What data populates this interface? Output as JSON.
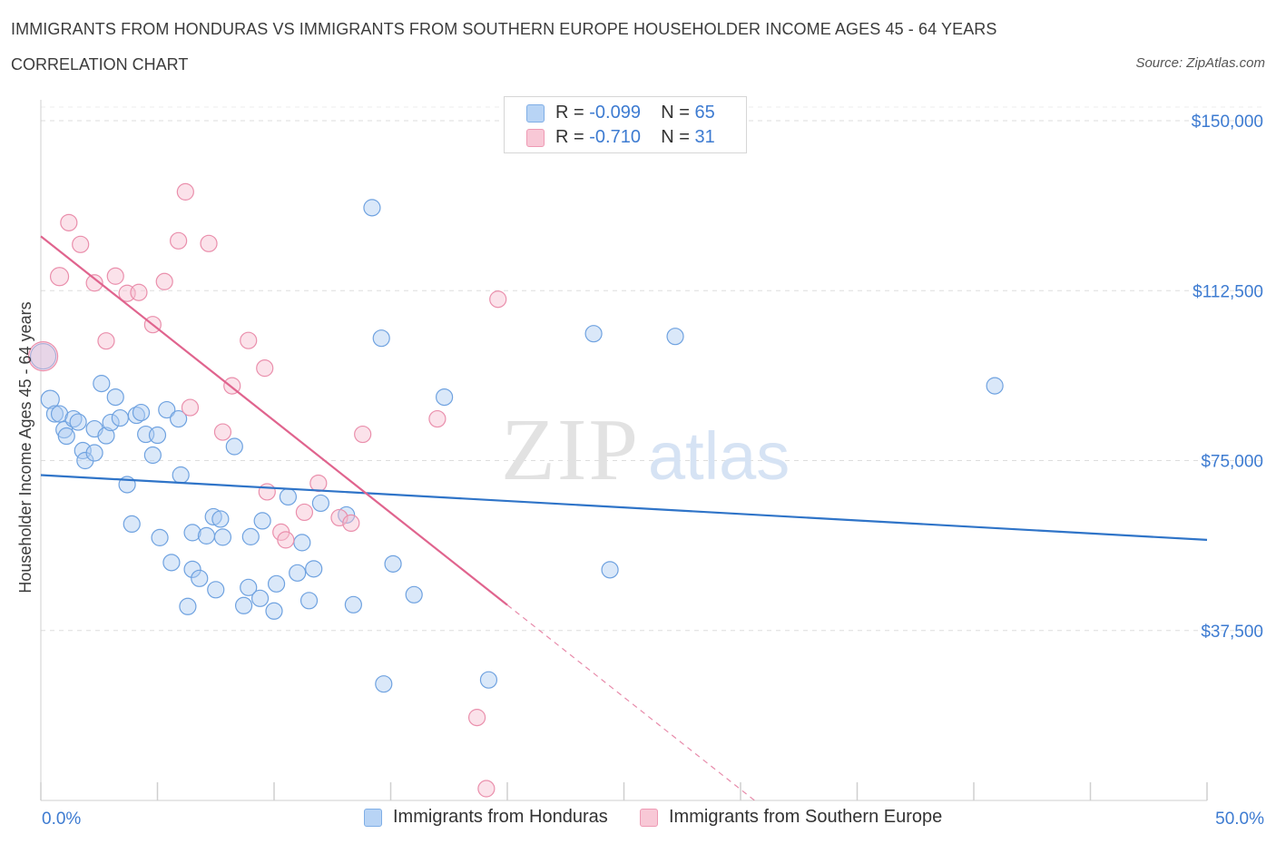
{
  "title": "IMMIGRANTS FROM HONDURAS VS IMMIGRANTS FROM SOUTHERN EUROPE HOUSEHOLDER INCOME AGES 45 - 64 YEARS",
  "subtitle": "CORRELATION CHART",
  "source": "Source: ZipAtlas.com",
  "watermark": {
    "zip": "ZIP",
    "atlas": "atlas"
  },
  "legend": {
    "rows": [
      {
        "r_label": "R =",
        "r_value": "-0.099",
        "n_label": "N =",
        "n_value": "65",
        "color": "#b8d4f5",
        "border": "#7faee6"
      },
      {
        "r_label": "R =",
        "r_value": "-0.710",
        "n_label": "N =",
        "n_value": "31",
        "color": "#f8c8d6",
        "border": "#ee9ab4"
      }
    ]
  },
  "bottom_legend": [
    {
      "label": "Immigrants from Honduras"
    },
    {
      "label": "Immigrants from Southern Europe"
    }
  ],
  "colors": {
    "blue_fill": "rgba(173,205,242,0.45)",
    "blue_stroke": "#6fa2e0",
    "blue_line": "#2f74c8",
    "pink_fill": "rgba(247,190,208,0.45)",
    "pink_stroke": "#ea8fac",
    "pink_line": "#e0648e",
    "tick_label": "#3d7bd1",
    "axis_label": "#3c3c3c",
    "grid": "#dddddd"
  },
  "chart_data": {
    "type": "scatter",
    "ylabel": "Householder Income Ages 45 - 64 years",
    "x_tick_labels": {
      "left": "0.0%",
      "right": "50.0%"
    },
    "xlim": [
      0,
      50
    ],
    "ylim": [
      0,
      150000
    ],
    "y_ticks": [
      {
        "value": 150000,
        "label": "$150,000"
      },
      {
        "value": 112500,
        "label": "$112,500"
      },
      {
        "value": 75000,
        "label": "$75,000"
      },
      {
        "value": 37500,
        "label": "$37,500"
      }
    ],
    "series": [
      {
        "name": "Immigrants from Honduras",
        "r": -0.099,
        "n": 65,
        "trend": {
          "x0": 0,
          "y0": 71800,
          "x1": 50,
          "y1": 57500,
          "dashed_from": null
        },
        "points": [
          [
            0.1,
            98000,
            14
          ],
          [
            0.4,
            88500,
            10
          ],
          [
            0.6,
            85300,
            9
          ],
          [
            0.8,
            85300,
            9
          ],
          [
            1.0,
            81800,
            9
          ],
          [
            1.1,
            80400,
            9
          ],
          [
            1.4,
            84200,
            9
          ],
          [
            1.6,
            83500,
            9
          ],
          [
            1.8,
            77200,
            9
          ],
          [
            1.9,
            75000,
            9
          ],
          [
            2.3,
            82000,
            9
          ],
          [
            2.3,
            76700,
            9
          ],
          [
            2.6,
            92000,
            9
          ],
          [
            2.8,
            80500,
            9
          ],
          [
            3.0,
            83400,
            9
          ],
          [
            3.2,
            89000,
            9
          ],
          [
            3.4,
            84400,
            9
          ],
          [
            3.7,
            69700,
            9
          ],
          [
            3.9,
            61000,
            9
          ],
          [
            4.1,
            85000,
            9
          ],
          [
            4.3,
            85600,
            9
          ],
          [
            4.5,
            80800,
            9
          ],
          [
            4.8,
            76200,
            9
          ],
          [
            5.0,
            80600,
            9
          ],
          [
            5.1,
            58000,
            9
          ],
          [
            5.4,
            86200,
            9
          ],
          [
            5.6,
            52500,
            9
          ],
          [
            5.9,
            84200,
            9
          ],
          [
            6.0,
            71800,
            9
          ],
          [
            6.3,
            42800,
            9
          ],
          [
            6.5,
            59100,
            9
          ],
          [
            6.5,
            51000,
            9
          ],
          [
            6.8,
            49000,
            9
          ],
          [
            7.1,
            58400,
            9
          ],
          [
            7.4,
            62600,
            9
          ],
          [
            7.5,
            46500,
            9
          ],
          [
            7.7,
            62100,
            9
          ],
          [
            7.8,
            58100,
            9
          ],
          [
            8.3,
            78100,
            9
          ],
          [
            8.7,
            43000,
            9
          ],
          [
            8.9,
            47000,
            9
          ],
          [
            9.0,
            58200,
            9
          ],
          [
            9.4,
            44600,
            9
          ],
          [
            9.5,
            61700,
            9
          ],
          [
            10.0,
            41800,
            9
          ],
          [
            10.1,
            47800,
            9
          ],
          [
            10.6,
            67000,
            9
          ],
          [
            11.0,
            50200,
            9
          ],
          [
            11.2,
            56900,
            9
          ],
          [
            11.5,
            44100,
            9
          ],
          [
            11.7,
            51100,
            9
          ],
          [
            12.0,
            65600,
            9
          ],
          [
            13.1,
            63000,
            9
          ],
          [
            13.4,
            43200,
            9
          ],
          [
            14.2,
            130800,
            9
          ],
          [
            14.6,
            102000,
            9
          ],
          [
            14.7,
            25700,
            9
          ],
          [
            15.1,
            52200,
            9
          ],
          [
            16.0,
            45400,
            9
          ],
          [
            17.3,
            89000,
            9
          ],
          [
            19.2,
            26600,
            9
          ],
          [
            23.7,
            103000,
            9
          ],
          [
            24.4,
            50900,
            9
          ],
          [
            27.2,
            102400,
            9
          ],
          [
            40.9,
            91500,
            9
          ]
        ]
      },
      {
        "name": "Immigrants from Southern Europe",
        "r": -0.71,
        "n": 31,
        "trend": {
          "x0": 0,
          "y0": 124500,
          "x1": 30.6,
          "y1": 0,
          "dashed_from": 20.0
        },
        "points": [
          [
            0.1,
            98000,
            16
          ],
          [
            0.8,
            115600,
            10
          ],
          [
            1.2,
            127500,
            9
          ],
          [
            1.7,
            122700,
            9
          ],
          [
            2.3,
            114200,
            9
          ],
          [
            2.8,
            101400,
            9
          ],
          [
            3.2,
            115700,
            9
          ],
          [
            3.7,
            111900,
            9
          ],
          [
            4.2,
            112100,
            9
          ],
          [
            4.8,
            105000,
            9
          ],
          [
            5.3,
            114500,
            9
          ],
          [
            5.9,
            123500,
            9
          ],
          [
            6.2,
            134300,
            9
          ],
          [
            6.4,
            86700,
            9
          ],
          [
            7.2,
            122900,
            9
          ],
          [
            7.8,
            81300,
            9
          ],
          [
            8.2,
            91500,
            9
          ],
          [
            8.9,
            101500,
            9
          ],
          [
            9.6,
            95400,
            9
          ],
          [
            9.7,
            68100,
            9
          ],
          [
            10.3,
            59200,
            9
          ],
          [
            10.5,
            57500,
            9
          ],
          [
            11.3,
            63600,
            9
          ],
          [
            11.9,
            70000,
            9
          ],
          [
            12.8,
            62400,
            9
          ],
          [
            13.3,
            61200,
            9
          ],
          [
            13.8,
            80800,
            9
          ],
          [
            17.0,
            84200,
            9
          ],
          [
            18.7,
            18300,
            9
          ],
          [
            19.1,
            2600,
            9
          ],
          [
            19.6,
            110600,
            9
          ]
        ]
      }
    ]
  }
}
